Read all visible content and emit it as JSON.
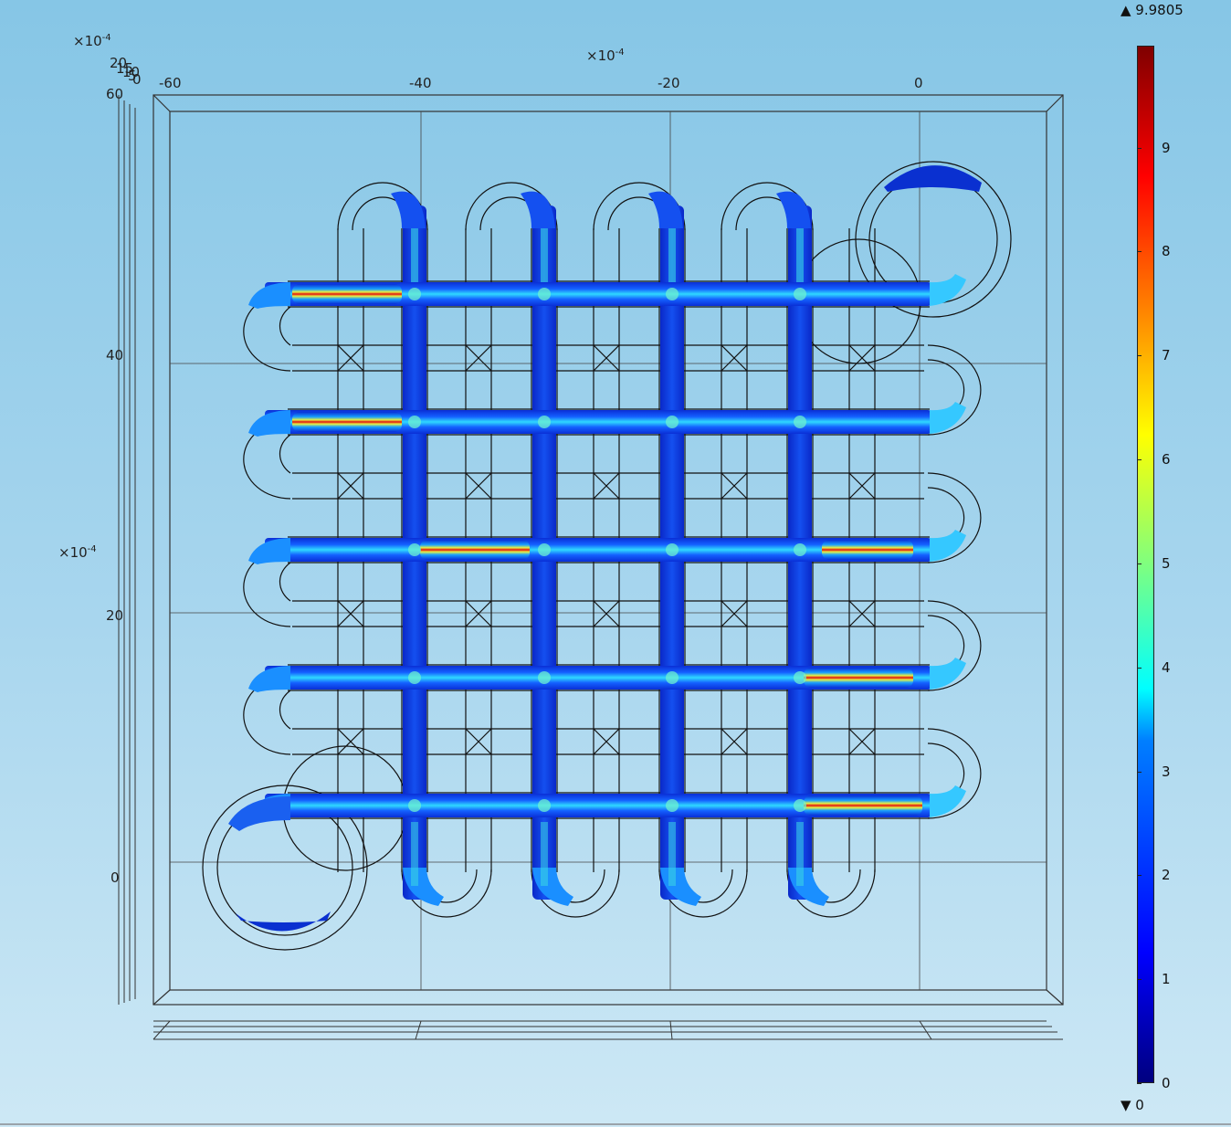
{
  "chart_data": {
    "type": "surface-3d-colormap",
    "title": "",
    "x_axis": {
      "exponent": "×10",
      "exponent_power": "-4",
      "ticks": [
        "-60",
        "-40",
        "-20",
        "0"
      ],
      "range": [
        -62,
        10
      ]
    },
    "y_axis": {
      "exponent": "×10",
      "exponent_power": "-4",
      "ticks": [
        "0",
        "20",
        "40",
        "60"
      ],
      "range": [
        -10,
        62
      ]
    },
    "z_axis": {
      "exponent": "×10",
      "exponent_power": "-4",
      "ticks": [
        "20",
        "15",
        "10",
        "5",
        "0"
      ]
    },
    "colorbar": {
      "max_label": "▲ 9.9805",
      "min_label": "▼ 0",
      "max": 9.9805,
      "min": 0,
      "ticks": [
        "0",
        "1",
        "2",
        "3",
        "4",
        "5",
        "6",
        "7",
        "8",
        "9"
      ],
      "colormap": "rainbow"
    },
    "grid": true
  }
}
